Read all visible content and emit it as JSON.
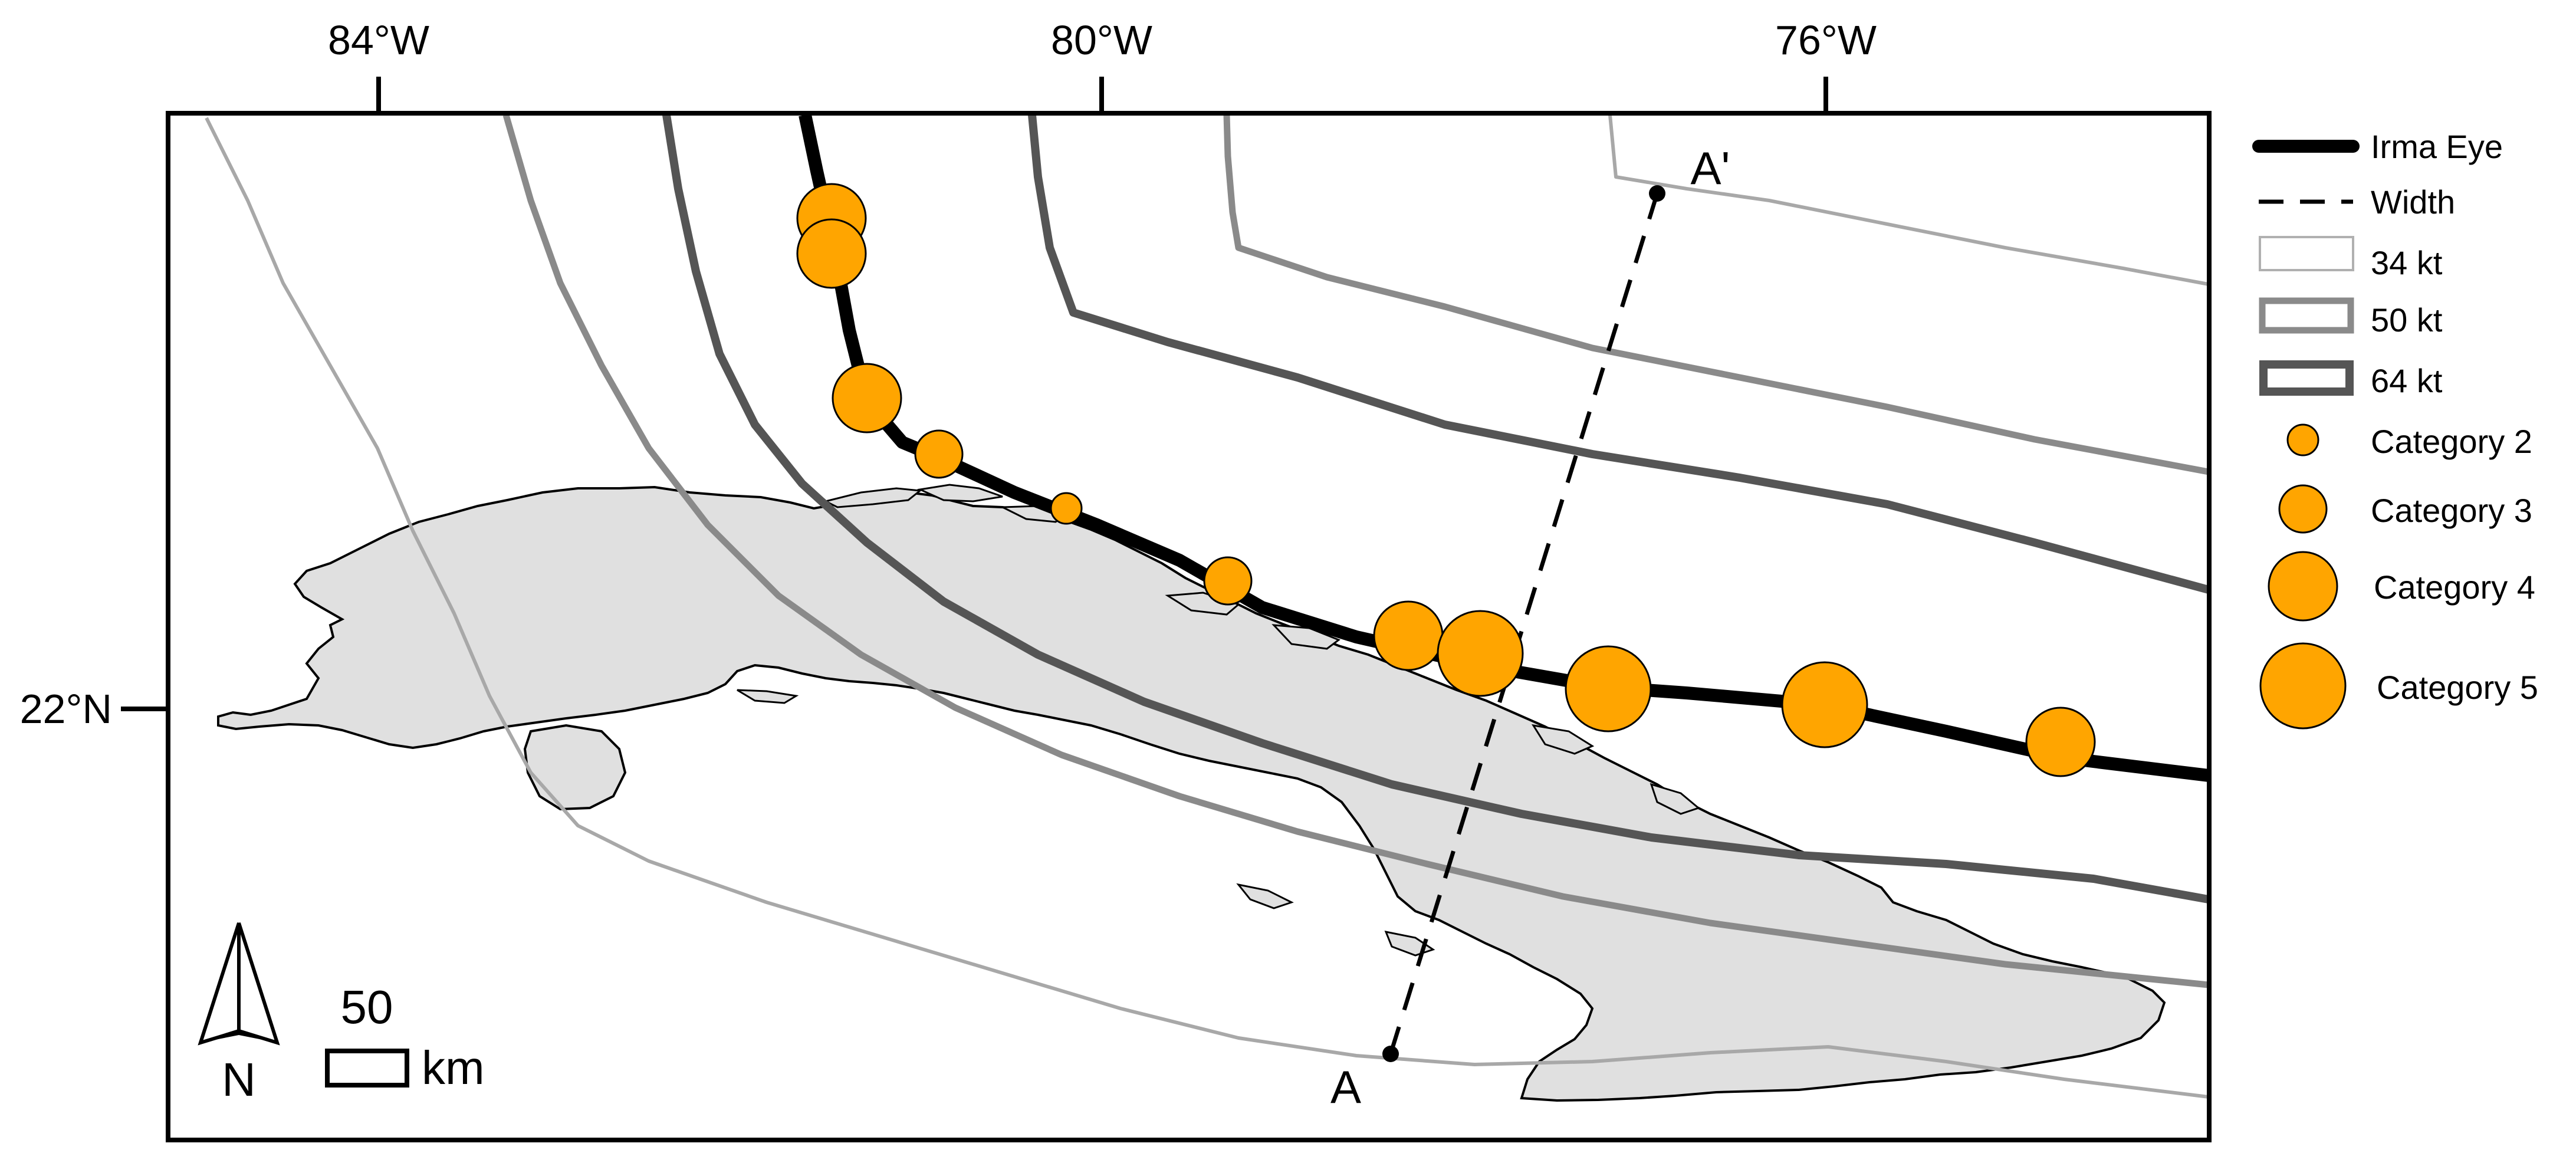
{
  "map": {
    "axes": {
      "lon_labels": [
        "84°W",
        "80°W",
        "76°W"
      ],
      "lat_labels": [
        "22°N"
      ]
    },
    "cross_section": {
      "start_label": "A",
      "end_label": "A'"
    },
    "north_arrow": {
      "label": "N"
    },
    "scale_bar": {
      "value": "50",
      "unit": "km"
    },
    "colors": {
      "land": "#e0e0e0",
      "track": "#000000",
      "wind_34": "#a8a8a8",
      "wind_50": "#8a8a8a",
      "wind_64": "#555555",
      "hurricane_marker": "#ffa500"
    },
    "legend": {
      "items": [
        {
          "label": "Irma Eye",
          "symbol": "thick-line"
        },
        {
          "label": "Width",
          "symbol": "dashed-line"
        },
        {
          "label": "34 kt",
          "symbol": "box-thin"
        },
        {
          "label": "50 kt",
          "symbol": "box-medium"
        },
        {
          "label": "64 kt",
          "symbol": "box-thick"
        },
        {
          "label": "Category 2",
          "symbol": "circle",
          "category": 2
        },
        {
          "label": "Category 3",
          "symbol": "circle",
          "category": 3
        },
        {
          "label": "Category 4",
          "symbol": "circle",
          "category": 4
        },
        {
          "label": "Category 5",
          "symbol": "circle",
          "category": 5
        }
      ]
    },
    "track_points": [
      {
        "category": 4
      },
      {
        "category": 4
      },
      {
        "category": 4
      },
      {
        "category": 3
      },
      {
        "category": 2
      },
      {
        "category": 3
      },
      {
        "category": 4
      },
      {
        "category": 5
      },
      {
        "category": 5
      },
      {
        "category": 5
      },
      {
        "category": 4
      }
    ]
  }
}
